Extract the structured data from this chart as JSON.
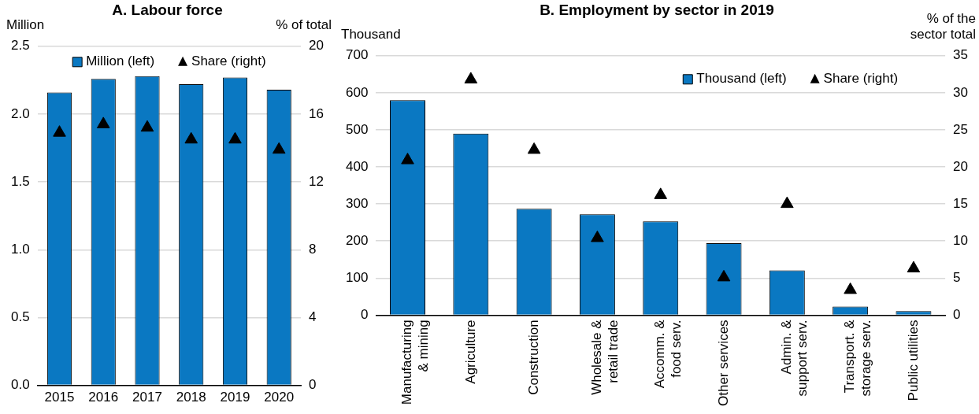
{
  "chart_data": [
    {
      "type": "bar",
      "title": "A. Labour force",
      "ylabel": "Million",
      "y2label": "% of total",
      "categories": [
        "2015",
        "2016",
        "2017",
        "2018",
        "2019",
        "2020"
      ],
      "series": [
        {
          "name": "Million (left)",
          "color": "#0a78c2",
          "values": [
            2.16,
            2.26,
            2.28,
            2.22,
            2.27,
            2.18
          ]
        },
        {
          "name": "Share (right)",
          "type": "scatter",
          "axis": "y2",
          "marker": "triangle",
          "color": "#000000",
          "values": [
            14.9,
            15.4,
            15.2,
            14.5,
            14.5,
            13.9
          ]
        }
      ],
      "ylim": [
        0,
        2.5
      ],
      "yticks": [
        {
          "value": 0,
          "label": "0.0"
        },
        {
          "value": 0.5,
          "label": "0.5"
        },
        {
          "value": 1,
          "label": "1.0"
        },
        {
          "value": 1.5,
          "label": "1.5"
        },
        {
          "value": 2,
          "label": "2.0"
        },
        {
          "value": 2.5,
          "label": "2.5"
        }
      ],
      "y2lim": [
        0,
        20
      ],
      "y2ticks": [
        0,
        4,
        8,
        12,
        16,
        20
      ],
      "grid": "y",
      "legend": "top"
    },
    {
      "type": "bar",
      "title": "B. Employment by sector in 2019",
      "ylabel": "Thousand",
      "y2label": "% of the sector total",
      "categories": [
        "Manufacturing & mining",
        "Agriculture",
        "Construction",
        "Wholesale & retail trade",
        "Accomm. & food serv.",
        "Other services",
        "Admin. & support serv.",
        "Transport. & storage serv.",
        "Public utilities"
      ],
      "series": [
        {
          "name": "Thousand (left)",
          "color": "#0a78c2",
          "values": [
            580,
            490,
            287,
            272,
            253,
            194,
            121,
            23,
            11
          ]
        },
        {
          "name": "Share (right)",
          "type": "scatter",
          "axis": "y2",
          "marker": "triangle",
          "color": "#000000",
          "values": [
            20.9,
            31.8,
            22.3,
            10.4,
            16.2,
            5.1,
            15.0,
            3.4,
            6.3
          ]
        }
      ],
      "ylim": [
        0,
        700
      ],
      "yticks": [
        0,
        100,
        200,
        300,
        400,
        500,
        600,
        700
      ],
      "y2lim": [
        0,
        35
      ],
      "y2ticks": [
        0,
        5,
        10,
        15,
        20,
        25,
        30,
        35
      ],
      "grid": "y",
      "legend": "top right"
    }
  ]
}
